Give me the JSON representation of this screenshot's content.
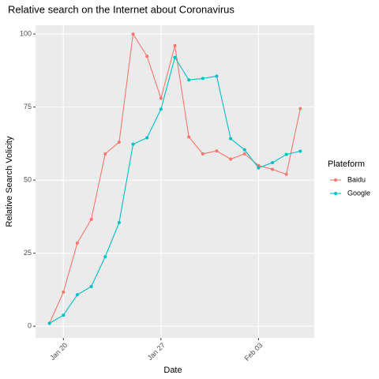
{
  "chart_data": {
    "type": "line",
    "title": "Relative search on the Internet about Coronavirus",
    "x_label": "Date",
    "y_label": "Relative Search Volicity",
    "legend_title": "Plateform",
    "x": [
      "01-19",
      "01-20",
      "01-21",
      "01-22",
      "01-23",
      "01-24",
      "01-25",
      "01-26",
      "01-27",
      "01-28",
      "01-29",
      "01-30",
      "01-31",
      "02-01",
      "02-02",
      "02-03",
      "02-04",
      "02-05",
      "02-06"
    ],
    "series": [
      {
        "name": "Baidu",
        "color": "#F8766D",
        "values": [
          1,
          11.7,
          28.5,
          36.6,
          59,
          63,
          100,
          92.4,
          78,
          96,
          64.8,
          59,
          60,
          57.2,
          59,
          55,
          53.7,
          52,
          74.5
        ]
      },
      {
        "name": "Google",
        "color": "#00BFC4",
        "values": [
          1,
          3.8,
          10.8,
          13.6,
          23.8,
          35.5,
          62.3,
          64.5,
          74.3,
          92,
          84.3,
          84.8,
          85.6,
          64.2,
          60.4,
          54.2,
          56,
          58.8,
          59.9
        ]
      }
    ],
    "xlim": [
      "01-18",
      "02-07"
    ],
    "xticks": [
      {
        "value": "01-20",
        "label": "Jan 20"
      },
      {
        "value": "01-27",
        "label": "Jan 27"
      },
      {
        "value": "02-03",
        "label": "Feb 03"
      }
    ],
    "ylim": [
      -4,
      103
    ],
    "yticks": [
      0,
      25,
      50,
      75,
      100
    ],
    "grid": true,
    "legend": "right"
  }
}
